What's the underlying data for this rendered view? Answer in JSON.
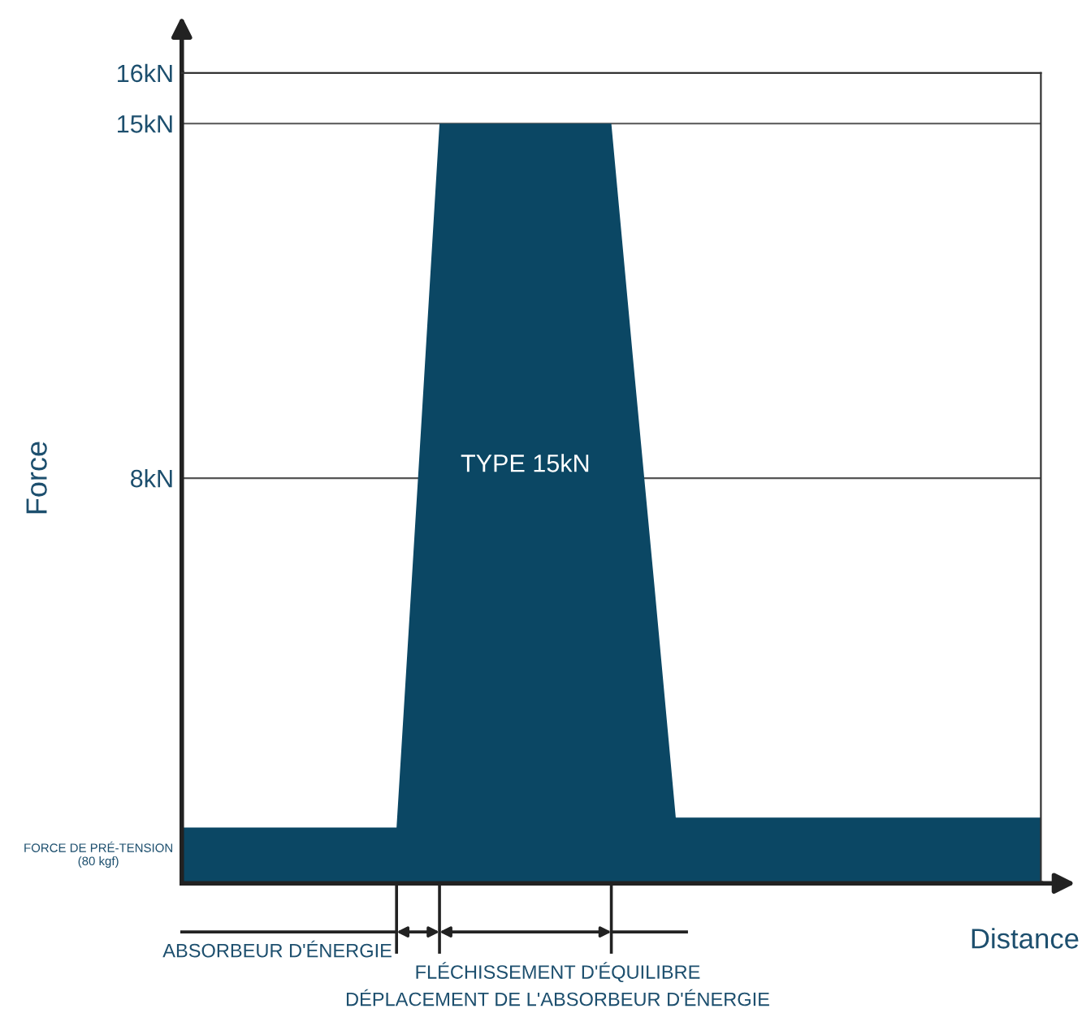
{
  "chart_data": {
    "type": "area",
    "categories": [
      null,
      null,
      null,
      null,
      null,
      null,
      null,
      null,
      null,
      null,
      null,
      null,
      null,
      null,
      null,
      null,
      null,
      null,
      null,
      null,
      null,
      null,
      null,
      null,
      null,
      null,
      null,
      null,
      null,
      null,
      null,
      null,
      null,
      null,
      null,
      null,
      null,
      null,
      null,
      null,
      null
    ],
    "series": [
      {
        "color": "#0b4764",
        "values": [
          1.1,
          1.1,
          1.1,
          1.1,
          1.1,
          1.1,
          1.1,
          1.1,
          1.1,
          1.1,
          1.1,
          8,
          15,
          15,
          15,
          15,
          15,
          15,
          15,
          15,
          15,
          10.4,
          5.9,
          1.3,
          1.3,
          1.3,
          1.3,
          1.3,
          1.3,
          1.3,
          1.3,
          1.3,
          1.3,
          1.3,
          1.3,
          1.3,
          1.3,
          1.3,
          1.3,
          1.3,
          1.3
        ]
      }
    ],
    "ylim": [
      0,
      16
    ],
    "yticks": [
      {
        "value": 8,
        "label": "8kN"
      },
      {
        "value": 15,
        "label": "15kN"
      },
      {
        "value": 16,
        "label": "16kN"
      }
    ],
    "tick_labels": "y",
    "grid": "y",
    "ylabel": "Force",
    "xlabel": "Distance",
    "annotations": [
      "TYPE 15kN",
      "FORCE DE PRÉ-TENSION\n(80 kgf)",
      "ABSORBEUR D'ÉNERGIE",
      "FLÉCHISSEMENT D'ÉQUILIBRE",
      "DÉPLACEMENT DE L'ABSORBEUR D'ÉNERGIE"
    ]
  }
}
